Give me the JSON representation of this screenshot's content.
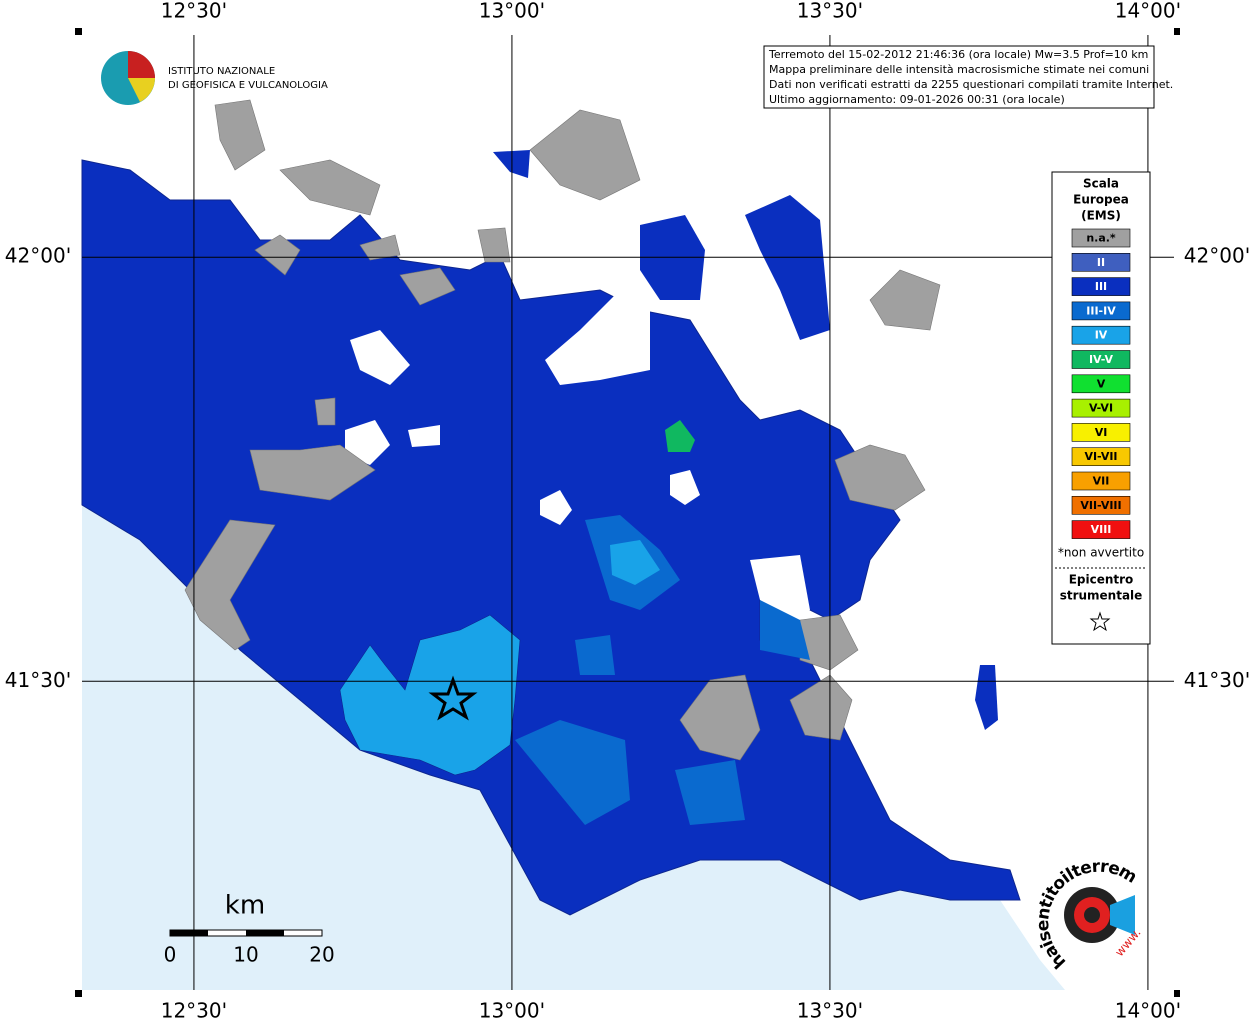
{
  "map": {
    "lon_ticks": [
      {
        "value": 12.5,
        "label": "12°30'"
      },
      {
        "value": 13.0,
        "label": "13°00'"
      },
      {
        "value": 13.5,
        "label": "13°30'"
      },
      {
        "value": 14.0,
        "label": "14°00'"
      }
    ],
    "lat_ticks": [
      {
        "value": 42.0,
        "label": "42°00'"
      },
      {
        "value": 41.5,
        "label": "41°30'"
      }
    ],
    "lonlim": [
      12.324,
      14.041
    ],
    "latlim": [
      41.136,
      42.262
    ],
    "info": [
      "Terremoto del 15-02-2012 21:46:36 (ora locale) Mw=3.5 Prof=10 km",
      "Mappa preliminare delle intensità macrosismiche stimate nei comuni",
      "Dati non verificati estratti da 2255 questionari compilati tramite Internet.",
      "Ultimo aggiornamento: 09-01-2026 00:31 (ora locale)"
    ],
    "institute": [
      "ISTITUTO NAZIONALE",
      "DI GEOFISICA E VULCANOLOGIA"
    ],
    "legend": {
      "title": [
        "Scala",
        "Europea",
        "(EMS)"
      ],
      "items": [
        {
          "label": "n.a.*",
          "color": "#a0a0a0"
        },
        {
          "label": "II",
          "color": "#3f5fbf"
        },
        {
          "label": "III",
          "color": "#0a2fbf"
        },
        {
          "label": "III-IV",
          "color": "#0a6acf"
        },
        {
          "label": "IV",
          "color": "#19a3e8"
        },
        {
          "label": "IV-V",
          "color": "#10b860"
        },
        {
          "label": "V",
          "color": "#10e030"
        },
        {
          "label": "V-VI",
          "color": "#a8f000"
        },
        {
          "label": "VI",
          "color": "#f8f000"
        },
        {
          "label": "VI-VII",
          "color": "#f8c800"
        },
        {
          "label": "VII",
          "color": "#f8a000"
        },
        {
          "label": "VII-VIII",
          "color": "#f07000"
        },
        {
          "label": "VIII",
          "color": "#f01010"
        }
      ],
      "note": "*non avvertito",
      "epicenter": [
        "Epicentro",
        "strumentale"
      ]
    },
    "scale": {
      "unit": "km",
      "labels": [
        "0",
        "10",
        "20"
      ]
    },
    "logo_text": "haisentitoilterremoto.it",
    "logo_www": "www."
  }
}
